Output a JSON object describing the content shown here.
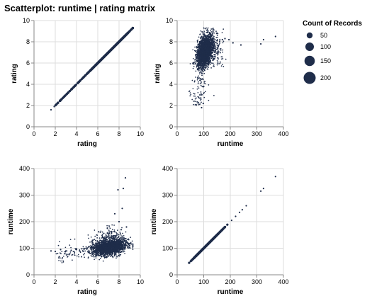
{
  "chart_data": {
    "type": "scatter",
    "title": "Scatterplot: runtime | rating matrix",
    "mark_color": "#1f2d4a",
    "grid": true,
    "legend": {
      "title": "Count of Records",
      "placement": "top-right",
      "entries": [
        {
          "label": "50",
          "value": 50
        },
        {
          "label": "100",
          "value": 100
        },
        {
          "label": "150",
          "value": 150
        },
        {
          "label": "200",
          "value": 200
        }
      ]
    },
    "panels": [
      {
        "x_field": "rating",
        "y_field": "rating",
        "xlabel": "rating",
        "ylabel": "rating",
        "xlim": [
          0,
          10
        ],
        "ylim": [
          0,
          10
        ],
        "xticks": [
          0,
          2,
          4,
          6,
          8,
          10
        ],
        "yticks": [
          0,
          2,
          4,
          6,
          8,
          10
        ],
        "points": [
          [
            1.6,
            1.6
          ],
          [
            1.9,
            1.9
          ],
          [
            2.3,
            2.3
          ],
          [
            2.9,
            2.9
          ],
          [
            3.4,
            3.4
          ],
          [
            3.7,
            3.7
          ],
          [
            4.0,
            4.0
          ],
          [
            4.3,
            4.3
          ],
          [
            4.6,
            4.6
          ],
          [
            4.9,
            4.9
          ],
          [
            5.2,
            5.2
          ],
          [
            5.5,
            5.5
          ],
          [
            5.8,
            5.8
          ],
          [
            6.1,
            6.1
          ],
          [
            6.4,
            6.4
          ],
          [
            6.7,
            6.7
          ],
          [
            7.0,
            7.0
          ],
          [
            7.3,
            7.3
          ],
          [
            7.6,
            7.6
          ],
          [
            7.9,
            7.9
          ],
          [
            8.2,
            8.2
          ],
          [
            8.5,
            8.5
          ],
          [
            8.8,
            8.8
          ],
          [
            9.1,
            9.1
          ],
          [
            9.3,
            9.3
          ]
        ]
      },
      {
        "x_field": "runtime",
        "y_field": "rating",
        "xlabel": "runtime",
        "ylabel": "rating",
        "xlim": [
          0,
          400
        ],
        "ylim": [
          0,
          10
        ],
        "xticks": [
          0,
          100,
          200,
          300,
          400
        ],
        "yticks": [
          0,
          2,
          4,
          6,
          8,
          10
        ],
        "points": [
          [
            80,
            5.5
          ],
          [
            85,
            6.2
          ],
          [
            90,
            6.5
          ],
          [
            95,
            7.0
          ],
          [
            100,
            7.2
          ],
          [
            105,
            7.4
          ],
          [
            110,
            7.6
          ],
          [
            95,
            4.5
          ],
          [
            100,
            3.8
          ],
          [
            90,
            3.0
          ],
          [
            98,
            2.2
          ],
          [
            92,
            1.8
          ],
          [
            120,
            7.8
          ],
          [
            130,
            7.9
          ],
          [
            140,
            8.0
          ],
          [
            150,
            8.1
          ],
          [
            160,
            8.0
          ],
          [
            170,
            8.2
          ],
          [
            180,
            8.3
          ],
          [
            195,
            8.2
          ],
          [
            210,
            7.9
          ],
          [
            240,
            7.7
          ],
          [
            315,
            7.8
          ],
          [
            325,
            8.2
          ],
          [
            370,
            8.5
          ],
          [
            60,
            6.0
          ],
          [
            70,
            6.8
          ],
          [
            75,
            7.5
          ],
          [
            85,
            8.0
          ],
          [
            115,
            8.5
          ],
          [
            125,
            8.8
          ],
          [
            135,
            9.0
          ]
        ]
      },
      {
        "x_field": "rating",
        "y_field": "runtime",
        "xlabel": "rating",
        "ylabel": "runtime",
        "xlim": [
          0,
          10
        ],
        "ylim": [
          0,
          400
        ],
        "xticks": [
          0,
          2,
          4,
          6,
          8,
          10
        ],
        "yticks": [
          0,
          100,
          200,
          300,
          400
        ],
        "points": [
          [
            1.6,
            90
          ],
          [
            2.0,
            88
          ],
          [
            2.5,
            95
          ],
          [
            3.0,
            90
          ],
          [
            3.5,
            92
          ],
          [
            4.0,
            95
          ],
          [
            4.5,
            98
          ],
          [
            5.0,
            100
          ],
          [
            5.5,
            100
          ],
          [
            6.0,
            102
          ],
          [
            6.5,
            105
          ],
          [
            7.0,
            108
          ],
          [
            7.5,
            112
          ],
          [
            8.0,
            120
          ],
          [
            8.5,
            130
          ],
          [
            9.0,
            110
          ],
          [
            7.8,
            150
          ],
          [
            8.2,
            170
          ],
          [
            8.0,
            200
          ],
          [
            7.6,
            230
          ],
          [
            8.3,
            250
          ],
          [
            7.9,
            320
          ],
          [
            8.4,
            325
          ],
          [
            8.6,
            365
          ],
          [
            6.0,
            80
          ],
          [
            7.0,
            85
          ],
          [
            8.0,
            90
          ],
          [
            5.5,
            130
          ],
          [
            6.8,
            140
          ],
          [
            7.3,
            160
          ],
          [
            8.7,
            180
          ]
        ]
      },
      {
        "x_field": "runtime",
        "y_field": "runtime",
        "xlabel": "runtime",
        "ylabel": "runtime",
        "xlim": [
          0,
          400
        ],
        "ylim": [
          0,
          400
        ],
        "xticks": [
          0,
          100,
          200,
          300,
          400
        ],
        "yticks": [
          0,
          100,
          200,
          300,
          400
        ],
        "points": [
          [
            45,
            45
          ],
          [
            55,
            55
          ],
          [
            65,
            65
          ],
          [
            75,
            75
          ],
          [
            85,
            85
          ],
          [
            95,
            95
          ],
          [
            105,
            105
          ],
          [
            115,
            115
          ],
          [
            125,
            125
          ],
          [
            135,
            135
          ],
          [
            145,
            145
          ],
          [
            160,
            160
          ],
          [
            175,
            175
          ],
          [
            190,
            190
          ],
          [
            205,
            205
          ],
          [
            220,
            220
          ],
          [
            235,
            235
          ],
          [
            245,
            245
          ],
          [
            260,
            260
          ],
          [
            315,
            315
          ],
          [
            325,
            325
          ],
          [
            370,
            370
          ]
        ]
      }
    ]
  }
}
